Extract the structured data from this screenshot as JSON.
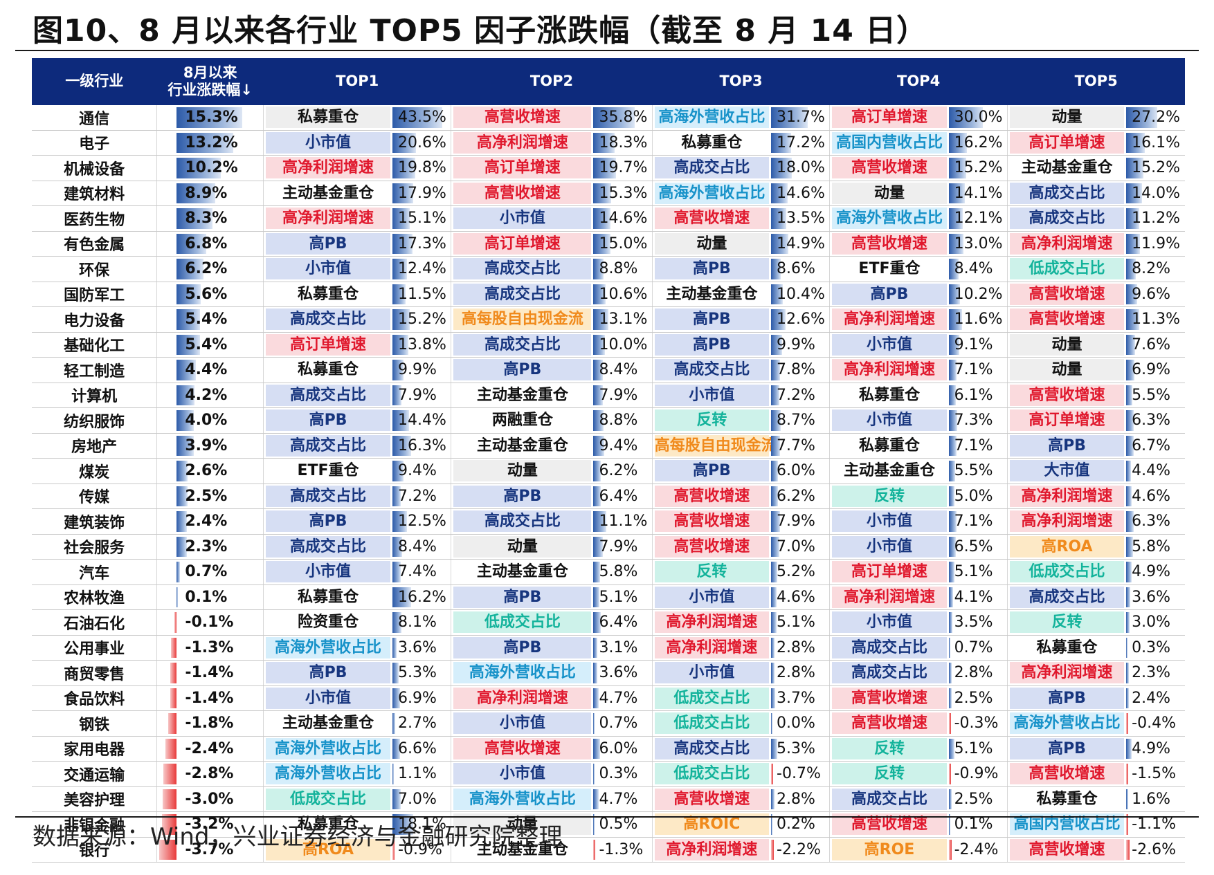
{
  "title": "图10、8 月以来各行业 TOP5 因子涨跌幅（截至 8 月 14 日）",
  "headers": [
    "一级行业",
    "8月以来\n行业涨跌幅↓",
    "TOP1",
    "TOP2",
    "TOP3",
    "TOP4",
    "TOP5"
  ],
  "source": "数据来源：Wind，兴业证券经济与金融研究院整理",
  "colors": {
    "header_bg": "#0d2a7c",
    "bar_positive": "#2c5aa8",
    "bar_negative": "#e83a3a"
  },
  "rows": [
    {
      "industry": "通信",
      "ret": "15.3%",
      "f": [
        [
          "私募重仓",
          "43.5%",
          "gray"
        ],
        [
          "高营收增速",
          "35.8%",
          "red"
        ],
        [
          "高海外营收占比",
          "31.7%",
          "cyan"
        ],
        [
          "高订单增速",
          "30.0%",
          "red"
        ],
        [
          "动量",
          "27.2%",
          "gray"
        ]
      ]
    },
    {
      "industry": "电子",
      "ret": "13.2%",
      "f": [
        [
          "小市值",
          "20.6%",
          "blue"
        ],
        [
          "高净利润增速",
          "18.3%",
          "red"
        ],
        [
          "私募重仓",
          "17.2%",
          "white"
        ],
        [
          "高国内营收占比",
          "16.2%",
          "cyan"
        ],
        [
          "高订单增速",
          "16.1%",
          "red"
        ]
      ]
    },
    {
      "industry": "机械设备",
      "ret": "10.2%",
      "f": [
        [
          "高净利润增速",
          "19.8%",
          "red"
        ],
        [
          "高订单增速",
          "19.7%",
          "red"
        ],
        [
          "高成交占比",
          "18.0%",
          "blue"
        ],
        [
          "高营收增速",
          "15.2%",
          "red"
        ],
        [
          "主动基金重仓",
          "15.2%",
          "white"
        ]
      ]
    },
    {
      "industry": "建筑材料",
      "ret": "8.9%",
      "f": [
        [
          "主动基金重仓",
          "17.9%",
          "white"
        ],
        [
          "高营收增速",
          "15.3%",
          "red"
        ],
        [
          "高海外营收占比",
          "14.6%",
          "cyan"
        ],
        [
          "动量",
          "14.1%",
          "gray"
        ],
        [
          "高成交占比",
          "14.0%",
          "blue"
        ]
      ]
    },
    {
      "industry": "医药生物",
      "ret": "8.3%",
      "f": [
        [
          "高净利润增速",
          "15.1%",
          "red"
        ],
        [
          "小市值",
          "14.6%",
          "blue"
        ],
        [
          "高营收增速",
          "13.5%",
          "red"
        ],
        [
          "高海外营收占比",
          "12.1%",
          "cyan"
        ],
        [
          "高成交占比",
          "11.2%",
          "blue"
        ]
      ]
    },
    {
      "industry": "有色金属",
      "ret": "6.8%",
      "f": [
        [
          "高PB",
          "17.3%",
          "blue"
        ],
        [
          "高订单增速",
          "15.0%",
          "red"
        ],
        [
          "动量",
          "14.9%",
          "gray"
        ],
        [
          "高营收增速",
          "13.0%",
          "red"
        ],
        [
          "高净利润增速",
          "11.9%",
          "red"
        ]
      ]
    },
    {
      "industry": "环保",
      "ret": "6.2%",
      "f": [
        [
          "小市值",
          "12.4%",
          "blue"
        ],
        [
          "高成交占比",
          "8.8%",
          "blue"
        ],
        [
          "高PB",
          "8.6%",
          "blue"
        ],
        [
          "ETF重仓",
          "8.4%",
          "white"
        ],
        [
          "低成交占比",
          "8.2%",
          "teal"
        ]
      ]
    },
    {
      "industry": "国防军工",
      "ret": "5.6%",
      "f": [
        [
          "私募重仓",
          "11.5%",
          "white"
        ],
        [
          "高成交占比",
          "10.6%",
          "blue"
        ],
        [
          "主动基金重仓",
          "10.4%",
          "white"
        ],
        [
          "高PB",
          "10.2%",
          "blue"
        ],
        [
          "高营收增速",
          "9.6%",
          "red"
        ]
      ]
    },
    {
      "industry": "电力设备",
      "ret": "5.4%",
      "f": [
        [
          "高成交占比",
          "15.2%",
          "blue"
        ],
        [
          "高每股自由现金流",
          "13.1%",
          "orange"
        ],
        [
          "高PB",
          "12.6%",
          "blue"
        ],
        [
          "高净利润增速",
          "11.6%",
          "red"
        ],
        [
          "高营收增速",
          "11.3%",
          "red"
        ]
      ]
    },
    {
      "industry": "基础化工",
      "ret": "5.4%",
      "f": [
        [
          "高订单增速",
          "13.8%",
          "red"
        ],
        [
          "高成交占比",
          "10.0%",
          "blue"
        ],
        [
          "高PB",
          "9.9%",
          "blue"
        ],
        [
          "小市值",
          "9.1%",
          "blue"
        ],
        [
          "动量",
          "7.6%",
          "gray"
        ]
      ]
    },
    {
      "industry": "轻工制造",
      "ret": "4.4%",
      "f": [
        [
          "私募重仓",
          "9.9%",
          "white"
        ],
        [
          "高PB",
          "8.4%",
          "blue"
        ],
        [
          "高成交占比",
          "7.8%",
          "blue"
        ],
        [
          "高净利润增速",
          "7.1%",
          "red"
        ],
        [
          "动量",
          "6.9%",
          "gray"
        ]
      ]
    },
    {
      "industry": "计算机",
      "ret": "4.2%",
      "f": [
        [
          "高成交占比",
          "7.9%",
          "blue"
        ],
        [
          "主动基金重仓",
          "7.9%",
          "white"
        ],
        [
          "小市值",
          "7.2%",
          "blue"
        ],
        [
          "私募重仓",
          "6.1%",
          "white"
        ],
        [
          "高营收增速",
          "5.5%",
          "red"
        ]
      ]
    },
    {
      "industry": "纺织服饰",
      "ret": "4.0%",
      "f": [
        [
          "高PB",
          "14.4%",
          "blue"
        ],
        [
          "两融重仓",
          "8.8%",
          "white"
        ],
        [
          "反转",
          "8.7%",
          "teal"
        ],
        [
          "小市值",
          "7.3%",
          "blue"
        ],
        [
          "高订单增速",
          "6.3%",
          "red"
        ]
      ]
    },
    {
      "industry": "房地产",
      "ret": "3.9%",
      "f": [
        [
          "高成交占比",
          "16.3%",
          "blue"
        ],
        [
          "主动基金重仓",
          "9.4%",
          "white"
        ],
        [
          "高每股自由现金流",
          "7.7%",
          "orange"
        ],
        [
          "私募重仓",
          "7.1%",
          "white"
        ],
        [
          "高PB",
          "6.7%",
          "blue"
        ]
      ]
    },
    {
      "industry": "煤炭",
      "ret": "2.6%",
      "f": [
        [
          "ETF重仓",
          "9.4%",
          "white"
        ],
        [
          "动量",
          "6.2%",
          "gray"
        ],
        [
          "高PB",
          "6.0%",
          "blue"
        ],
        [
          "主动基金重仓",
          "5.5%",
          "white"
        ],
        [
          "大市值",
          "4.4%",
          "blue"
        ]
      ]
    },
    {
      "industry": "传媒",
      "ret": "2.5%",
      "f": [
        [
          "高成交占比",
          "7.2%",
          "blue"
        ],
        [
          "高PB",
          "6.4%",
          "blue"
        ],
        [
          "高营收增速",
          "6.2%",
          "red"
        ],
        [
          "反转",
          "5.0%",
          "teal"
        ],
        [
          "高净利润增速",
          "4.6%",
          "red"
        ]
      ]
    },
    {
      "industry": "建筑装饰",
      "ret": "2.4%",
      "f": [
        [
          "高PB",
          "12.5%",
          "blue"
        ],
        [
          "高成交占比",
          "11.1%",
          "blue"
        ],
        [
          "高营收增速",
          "7.9%",
          "red"
        ],
        [
          "小市值",
          "7.1%",
          "blue"
        ],
        [
          "高净利润增速",
          "6.3%",
          "red"
        ]
      ]
    },
    {
      "industry": "社会服务",
      "ret": "2.3%",
      "f": [
        [
          "高成交占比",
          "8.4%",
          "blue"
        ],
        [
          "动量",
          "7.9%",
          "gray"
        ],
        [
          "高营收增速",
          "7.0%",
          "red"
        ],
        [
          "小市值",
          "6.5%",
          "blue"
        ],
        [
          "高ROA",
          "5.8%",
          "orange"
        ]
      ]
    },
    {
      "industry": "汽车",
      "ret": "0.7%",
      "f": [
        [
          "小市值",
          "7.4%",
          "blue"
        ],
        [
          "主动基金重仓",
          "5.8%",
          "white"
        ],
        [
          "反转",
          "5.2%",
          "teal"
        ],
        [
          "高订单增速",
          "5.1%",
          "red"
        ],
        [
          "低成交占比",
          "4.9%",
          "teal"
        ]
      ]
    },
    {
      "industry": "农林牧渔",
      "ret": "0.1%",
      "f": [
        [
          "私募重仓",
          "16.2%",
          "white"
        ],
        [
          "高PB",
          "5.1%",
          "blue"
        ],
        [
          "小市值",
          "4.6%",
          "blue"
        ],
        [
          "高净利润增速",
          "4.1%",
          "red"
        ],
        [
          "高成交占比",
          "3.6%",
          "blue"
        ]
      ]
    },
    {
      "industry": "石油石化",
      "ret": "-0.1%",
      "f": [
        [
          "险资重仓",
          "8.1%",
          "white"
        ],
        [
          "低成交占比",
          "6.4%",
          "teal"
        ],
        [
          "高净利润增速",
          "5.1%",
          "red"
        ],
        [
          "小市值",
          "3.5%",
          "blue"
        ],
        [
          "反转",
          "3.0%",
          "teal"
        ]
      ]
    },
    {
      "industry": "公用事业",
      "ret": "-1.3%",
      "f": [
        [
          "高海外营收占比",
          "3.6%",
          "cyan"
        ],
        [
          "高PB",
          "3.1%",
          "blue"
        ],
        [
          "高净利润增速",
          "2.8%",
          "red"
        ],
        [
          "高成交占比",
          "0.7%",
          "blue"
        ],
        [
          "私募重仓",
          "0.3%",
          "white"
        ]
      ]
    },
    {
      "industry": "商贸零售",
      "ret": "-1.4%",
      "f": [
        [
          "高PB",
          "5.3%",
          "blue"
        ],
        [
          "高海外营收占比",
          "3.6%",
          "cyan"
        ],
        [
          "小市值",
          "2.8%",
          "blue"
        ],
        [
          "高成交占比",
          "2.8%",
          "blue"
        ],
        [
          "高净利润增速",
          "2.3%",
          "red"
        ]
      ]
    },
    {
      "industry": "食品饮料",
      "ret": "-1.4%",
      "f": [
        [
          "小市值",
          "6.9%",
          "blue"
        ],
        [
          "高净利润增速",
          "4.7%",
          "red"
        ],
        [
          "低成交占比",
          "3.7%",
          "teal"
        ],
        [
          "高营收增速",
          "2.5%",
          "red"
        ],
        [
          "高PB",
          "2.4%",
          "blue"
        ]
      ]
    },
    {
      "industry": "钢铁",
      "ret": "-1.8%",
      "f": [
        [
          "主动基金重仓",
          "2.7%",
          "white"
        ],
        [
          "小市值",
          "0.7%",
          "blue"
        ],
        [
          "低成交占比",
          "0.0%",
          "teal"
        ],
        [
          "高营收增速",
          "-0.3%",
          "red"
        ],
        [
          "高海外营收占比",
          "-0.4%",
          "cyan"
        ]
      ]
    },
    {
      "industry": "家用电器",
      "ret": "-2.4%",
      "f": [
        [
          "高海外营收占比",
          "6.6%",
          "cyan"
        ],
        [
          "高营收增速",
          "6.0%",
          "red"
        ],
        [
          "高成交占比",
          "5.3%",
          "blue"
        ],
        [
          "反转",
          "5.1%",
          "teal"
        ],
        [
          "高PB",
          "4.9%",
          "blue"
        ]
      ]
    },
    {
      "industry": "交通运输",
      "ret": "-2.8%",
      "f": [
        [
          "高海外营收占比",
          "1.1%",
          "cyan"
        ],
        [
          "小市值",
          "0.3%",
          "blue"
        ],
        [
          "低成交占比",
          "-0.7%",
          "teal"
        ],
        [
          "反转",
          "-0.9%",
          "teal"
        ],
        [
          "高营收增速",
          "-1.5%",
          "red"
        ]
      ]
    },
    {
      "industry": "美容护理",
      "ret": "-3.0%",
      "f": [
        [
          "低成交占比",
          "7.0%",
          "teal"
        ],
        [
          "高海外营收占比",
          "4.7%",
          "cyan"
        ],
        [
          "高营收增速",
          "2.8%",
          "red"
        ],
        [
          "高成交占比",
          "2.5%",
          "blue"
        ],
        [
          "私募重仓",
          "1.6%",
          "white"
        ]
      ]
    },
    {
      "industry": "非银金融",
      "ret": "-3.2%",
      "f": [
        [
          "私募重仓",
          "18.1%",
          "white"
        ],
        [
          "动量",
          "0.5%",
          "gray"
        ],
        [
          "高ROIC",
          "0.2%",
          "orange"
        ],
        [
          "高营收增速",
          "0.1%",
          "red"
        ],
        [
          "高国内营收占比",
          "-1.1%",
          "cyan"
        ]
      ]
    },
    {
      "industry": "银行",
      "ret": "-3.7%",
      "f": [
        [
          "高ROA",
          "-0.9%",
          "orange"
        ],
        [
          "主动基金重仓",
          "-1.3%",
          "white"
        ],
        [
          "高净利润增速",
          "-2.2%",
          "red"
        ],
        [
          "高ROE",
          "-2.4%",
          "orange"
        ],
        [
          "高营收增速",
          "-2.6%",
          "red"
        ]
      ]
    }
  ]
}
